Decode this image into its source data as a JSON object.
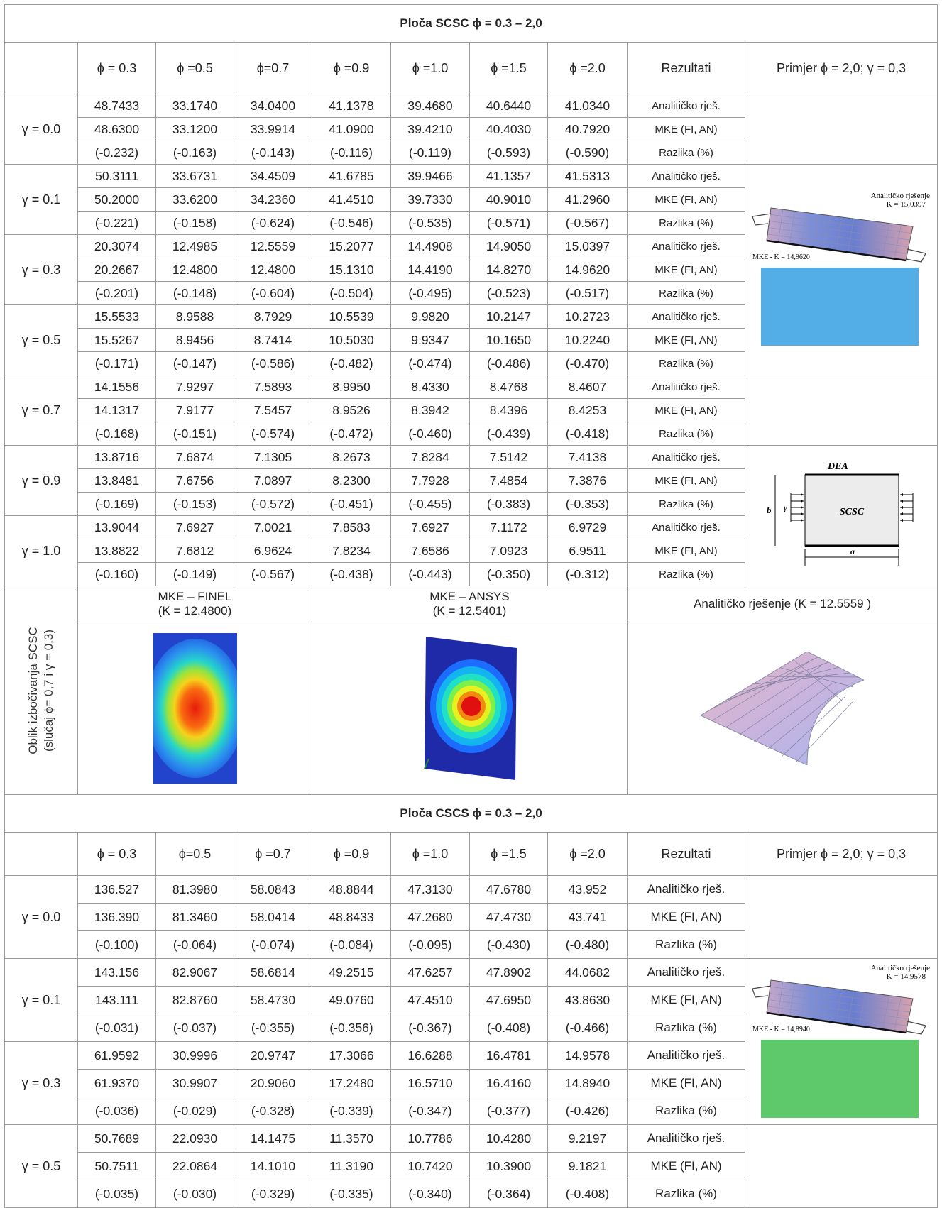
{
  "phi_symbol": "ϕ",
  "gamma_symbol": "γ",
  "scsc": {
    "title": "Ploča SCSC ϕ = 0.3 – 2,0",
    "headers": [
      "ϕ = 0.3",
      "ϕ =0.5",
      "ϕ=0.7",
      "ϕ =0.9",
      "ϕ =1.0",
      "ϕ =1.5",
      "ϕ =2.0",
      "Rezultati",
      "Primjer ϕ = 2,0; γ = 0,3"
    ],
    "groups": [
      {
        "gamma": "γ = 0.0",
        "rows": [
          [
            "48.7433",
            "33.1740",
            "34.0400",
            "41.1378",
            "39.4680",
            "40.6440",
            "41.0340",
            "Analitičko rješ."
          ],
          [
            "48.6300",
            "33.1200",
            "33.9914",
            "41.0900",
            "39.4210",
            "40.4030",
            "40.7920",
            "MKE (FI, AN)"
          ],
          [
            "(-0.232)",
            "(-0.163)",
            "(-0.143)",
            "(-0.116)",
            "(-0.119)",
            "(-0.593)",
            "(-0.590)",
            "Razlika (%)"
          ]
        ]
      },
      {
        "gamma": "γ = 0.1",
        "rows": [
          [
            "50.3111",
            "33.6731",
            "34.4509",
            "41.6785",
            "39.9466",
            "41.1357",
            "41.5313",
            "Analitičko rješ."
          ],
          [
            "50.2000",
            "33.6200",
            "34.2360",
            "41.4510",
            "39.7330",
            "40.9010",
            "41.2960",
            "MKE (FI, AN)"
          ],
          [
            "(-0.221)",
            "(-0.158)",
            "(-0.624)",
            "(-0.546)",
            "(-0.535)",
            "(-0.571)",
            "(-0.567)",
            "Razlika (%)"
          ]
        ]
      },
      {
        "gamma": "γ = 0.3",
        "rows": [
          [
            "20.3074",
            "12.4985",
            "12.5559",
            "15.2077",
            "14.4908",
            "14.9050",
            "15.0397",
            "Analitičko rješ."
          ],
          [
            "20.2667",
            "12.4800",
            "12.4800",
            "15.1310",
            "14.4190",
            "14.8270",
            "14.9620",
            "MKE (FI, AN)"
          ],
          [
            "(-0.201)",
            "(-0.148)",
            "(-0.604)",
            "(-0.504)",
            "(-0.495)",
            "(-0.523)",
            "(-0.517)",
            "Razlika (%)"
          ]
        ]
      },
      {
        "gamma": "γ = 0.5",
        "rows": [
          [
            "15.5533",
            "8.9588",
            "8.7929",
            "10.5539",
            "9.9820",
            "10.2147",
            "10.2723",
            "Analitičko rješ."
          ],
          [
            "15.5267",
            "8.9456",
            "8.7414",
            "10.5030",
            "9.9347",
            "10.1650",
            "10.2240",
            "MKE (FI, AN)"
          ],
          [
            "(-0.171)",
            "(-0.147)",
            "(-0.586)",
            "(-0.482)",
            "(-0.474)",
            "(-0.486)",
            "(-0.470)",
            "Razlika (%)"
          ]
        ]
      },
      {
        "gamma": "γ = 0.7",
        "rows": [
          [
            "14.1556",
            "7.9297",
            "7.5893",
            "8.9950",
            "8.4330",
            "8.4768",
            "8.4607",
            "Analitičko rješ."
          ],
          [
            "14.1317",
            "7.9177",
            "7.5457",
            "8.9526",
            "8.3942",
            "8.4396",
            "8.4253",
            "MKE (FI, AN)"
          ],
          [
            "(-0.168)",
            "(-0.151)",
            "(-0.574)",
            "(-0.472)",
            "(-0.460)",
            "(-0.439)",
            "(-0.418)",
            "Razlika (%)"
          ]
        ]
      },
      {
        "gamma": "γ = 0.9",
        "rows": [
          [
            "13.8716",
            "7.6874",
            "7.1305",
            "8.2673",
            "7.8284",
            "7.5142",
            "7.4138",
            "Analitičko rješ."
          ],
          [
            "13.8481",
            "7.6756",
            "7.0897",
            "8.2300",
            "7.7928",
            "7.4854",
            "7.3876",
            "MKE (FI, AN)"
          ],
          [
            "(-0.169)",
            "(-0.153)",
            "(-0.572)",
            "(-0.451)",
            "(-0.455)",
            "(-0.383)",
            "(-0.353)",
            "Razlika (%)"
          ]
        ]
      },
      {
        "gamma": "γ = 1.0",
        "rows": [
          [
            "13.9044",
            "7.6927",
            "7.0021",
            "7.8583",
            "7.6927",
            "7.1172",
            "6.9729",
            "Analitičko rješ."
          ],
          [
            "13.8822",
            "7.6812",
            "6.9624",
            "7.8234",
            "7.6586",
            "7.0923",
            "6.9511",
            "MKE (FI, AN)"
          ],
          [
            "(-0.160)",
            "(-0.149)",
            "(-0.567)",
            "(-0.438)",
            "(-0.443)",
            "(-0.350)",
            "(-0.312)",
            "Razlika (%)"
          ]
        ]
      }
    ],
    "example_analytic_label": "Analitičko rješenje",
    "example_analytic_k": "K = 15,0397",
    "example_mke_label": "MKE - K = 14,9620",
    "diagram_title": "DEA",
    "diagram_label": "SCSC",
    "diagram_b": "b",
    "diagram_gamma": "γ",
    "diagram_a": "a",
    "mode_label_line1": "Oblik izbočivanja SCSC",
    "mode_label_line2": "(slučaj ϕ= 0,7 i γ = 0,3)",
    "finel_caption_1": "MKE – FINEL",
    "finel_caption_2": "(K = 12.4800)",
    "ansys_caption_1": "MKE – ANSYS",
    "ansys_caption_2": "(K  = 12.5401)",
    "analytic_caption": "Analitičko rješenje (K = 12.5559 )"
  },
  "cscs": {
    "title": "Ploča CSCS ϕ = 0.3 – 2,0",
    "headers": [
      "ϕ = 0.3",
      "ϕ=0.5",
      "ϕ =0.7",
      "ϕ =0.9",
      "ϕ =1.0",
      "ϕ =1.5",
      "ϕ =2.0",
      "Rezultati",
      "Primjer ϕ = 2,0; γ = 0,3"
    ],
    "groups": [
      {
        "gamma": "γ = 0.0",
        "rows": [
          [
            "136.527",
            "81.3980",
            "58.0843",
            "48.8844",
            "47.3130",
            "47.6780",
            "43.952",
            "Analitičko rješ."
          ],
          [
            "136.390",
            "81.3460",
            "58.0414",
            "48.8433",
            "47.2680",
            "47.4730",
            "43.741",
            "MKE (FI, AN)"
          ],
          [
            "(-0.100)",
            "(-0.064)",
            "(-0.074)",
            "(-0.084)",
            "(-0.095)",
            "(-0.430)",
            "(-0.480)",
            "Razlika (%)"
          ]
        ]
      },
      {
        "gamma": "γ = 0.1",
        "rows": [
          [
            "143.156",
            "82.9067",
            "58.6814",
            "49.2515",
            "47.6257",
            "47.8902",
            "44.0682",
            "Analitičko rješ."
          ],
          [
            "143.111",
            "82.8760",
            "58.4730",
            "49.0760",
            "47.4510",
            "47.6950",
            "43.8630",
            "MKE (FI, AN)"
          ],
          [
            "(-0.031)",
            "(-0.037)",
            "(-0.355)",
            "(-0.356)",
            "(-0.367)",
            "(-0.408)",
            "(-0.466)",
            "Razlika (%)"
          ]
        ]
      },
      {
        "gamma": "γ = 0.3",
        "rows": [
          [
            "61.9592",
            "30.9996",
            "20.9747",
            "17.3066",
            "16.6288",
            "16.4781",
            "14.9578",
            "Analitičko rješ."
          ],
          [
            "61.9370",
            "30.9907",
            "20.9060",
            "17.2480",
            "16.5710",
            "16.4160",
            "14.8940",
            "MKE (FI, AN)"
          ],
          [
            "(-0.036)",
            "(-0.029)",
            "(-0.328)",
            "(-0.339)",
            "(-0.347)",
            "(-0.377)",
            "(-0.426)",
            "Razlika (%)"
          ]
        ]
      },
      {
        "gamma": "γ = 0.5",
        "rows": [
          [
            "50.7689",
            "22.0930",
            "14.1475",
            "11.3570",
            "10.7786",
            "10.4280",
            "9.2197",
            "Analitičko rješ."
          ],
          [
            "50.7511",
            "22.0864",
            "14.1010",
            "11.3190",
            "10.7420",
            "10.3900",
            "9.1821",
            "MKE (FI, AN)"
          ],
          [
            "(-0.035)",
            "(-0.030)",
            "(-0.329)",
            "(-0.335)",
            "(-0.340)",
            "(-0.364)",
            "(-0.408)",
            "Razlika (%)"
          ]
        ]
      }
    ],
    "example_analytic_label": "Analitičko rješenje",
    "example_analytic_k": "K = 14,9578",
    "example_mke_label": "MKE - K = 14,8940"
  }
}
